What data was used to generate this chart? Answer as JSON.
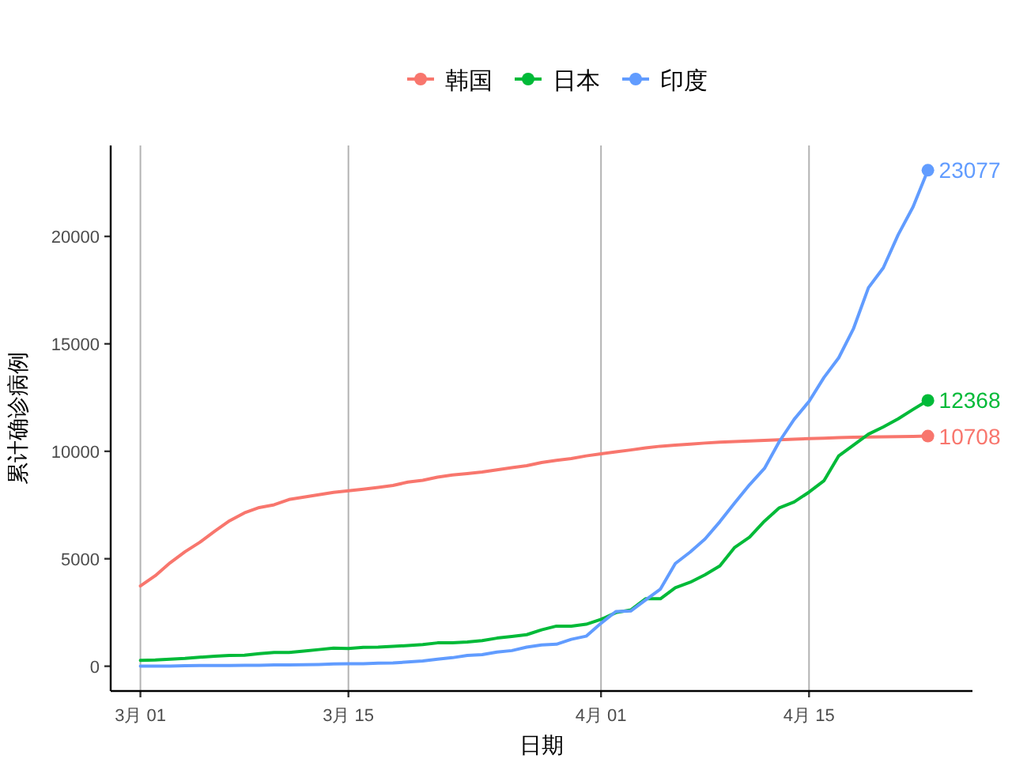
{
  "chart_data": {
    "type": "line",
    "xlabel": "日期",
    "ylabel": "累计确诊病例",
    "x": [
      "--03-01",
      "--03-02",
      "--03-03",
      "--03-04",
      "--03-05",
      "--03-06",
      "--03-07",
      "--03-08",
      "--03-09",
      "--03-10",
      "--03-11",
      "--03-12",
      "--03-13",
      "--03-14",
      "--03-15",
      "--03-16",
      "--03-17",
      "--03-18",
      "--03-19",
      "--03-20",
      "--03-21",
      "--03-22",
      "--03-23",
      "--03-24",
      "--03-25",
      "--03-26",
      "--03-27",
      "--03-28",
      "--03-29",
      "--03-30",
      "--03-31",
      "--04-01",
      "--04-02",
      "--04-03",
      "--04-04",
      "--04-05",
      "--04-06",
      "--04-07",
      "--04-08",
      "--04-09",
      "--04-10",
      "--04-11",
      "--04-12",
      "--04-13",
      "--04-14",
      "--04-15",
      "--04-16",
      "--04-17",
      "--04-18",
      "--04-19",
      "--04-20",
      "--04-21",
      "--04-22",
      "--04-23"
    ],
    "series": [
      {
        "name": "韩国",
        "color": "#f8766d",
        "values": [
          3736,
          4212,
          4812,
          5328,
          5766,
          6284,
          6767,
          7134,
          7382,
          7513,
          7755,
          7869,
          7979,
          8086,
          8162,
          8236,
          8320,
          8413,
          8565,
          8652,
          8799,
          8897,
          8961,
          9037,
          9137,
          9241,
          9332,
          9478,
          9583,
          9661,
          9786,
          9887,
          9976,
          10062,
          10156,
          10237,
          10284,
          10331,
          10384,
          10423,
          10450,
          10480,
          10512,
          10537,
          10564,
          10591,
          10613,
          10635,
          10653,
          10661,
          10674,
          10683,
          10694,
          10708
        ]
      },
      {
        "name": "日本",
        "color": "#00ba38",
        "values": [
          274,
          293,
          331,
          360,
          420,
          461,
          502,
          511,
          581,
          639,
          639,
          701,
          773,
          839,
          825,
          878,
          889,
          924,
          963,
          1007,
          1086,
          1086,
          1128,
          1193,
          1307,
          1387,
          1468,
          1693,
          1866,
          1866,
          1953,
          2178,
          2495,
          2617,
          3139,
          3139,
          3654,
          3906,
          4257,
          4667,
          5530,
          6005,
          6748,
          7370,
          7645,
          8100,
          8626,
          9787,
          10296,
          10797,
          11135,
          11512,
          11950,
          12368
        ]
      },
      {
        "name": "印度",
        "color": "#619cff",
        "values": [
          3,
          5,
          5,
          28,
          30,
          31,
          34,
          39,
          43,
          56,
          62,
          73,
          82,
          102,
          113,
          119,
          142,
          156,
          194,
          244,
          330,
          396,
          499,
          536,
          657,
          727,
          887,
          987,
          1024,
          1251,
          1397,
          1998,
          2543,
          2567,
          3082,
          3588,
          4778,
          5311,
          5916,
          6725,
          7598,
          8446,
          9205,
          10453,
          11487,
          12322,
          13430,
          14352,
          15722,
          17615,
          18539,
          20080,
          21370,
          23077
        ]
      },
      {
        "type": "scatter",
        "color": "#f8766d",
        "x": [
          "--04-23"
        ],
        "values": [
          10708
        ]
      },
      {
        "type": "scatter",
        "color": "#00ba38",
        "x": [
          "--04-23"
        ],
        "values": [
          12368
        ]
      },
      {
        "type": "scatter",
        "color": "#619cff",
        "x": [
          "--04-23"
        ],
        "values": [
          23077
        ]
      }
    ],
    "xlim": [
      "--02-27",
      "--04-26"
    ],
    "xticks": [
      {
        "value": "--03-01",
        "label": "3月 01"
      },
      {
        "value": "--03-15",
        "label": "3月 15"
      },
      {
        "value": "--04-01",
        "label": "4月 01"
      },
      {
        "value": "--04-15",
        "label": "4月 15"
      }
    ],
    "ylim": [
      -1154,
      24231
    ],
    "yticks": [
      0,
      5000,
      10000,
      15000,
      20000
    ],
    "grid": "x",
    "legend": "top",
    "annotations": [
      {
        "text": "23077",
        "x": "--04-23",
        "y": 23077
      },
      {
        "text": "12368",
        "x": "--04-23",
        "y": 12368
      },
      {
        "text": "10708",
        "x": "--04-23",
        "y": 10708
      }
    ]
  }
}
